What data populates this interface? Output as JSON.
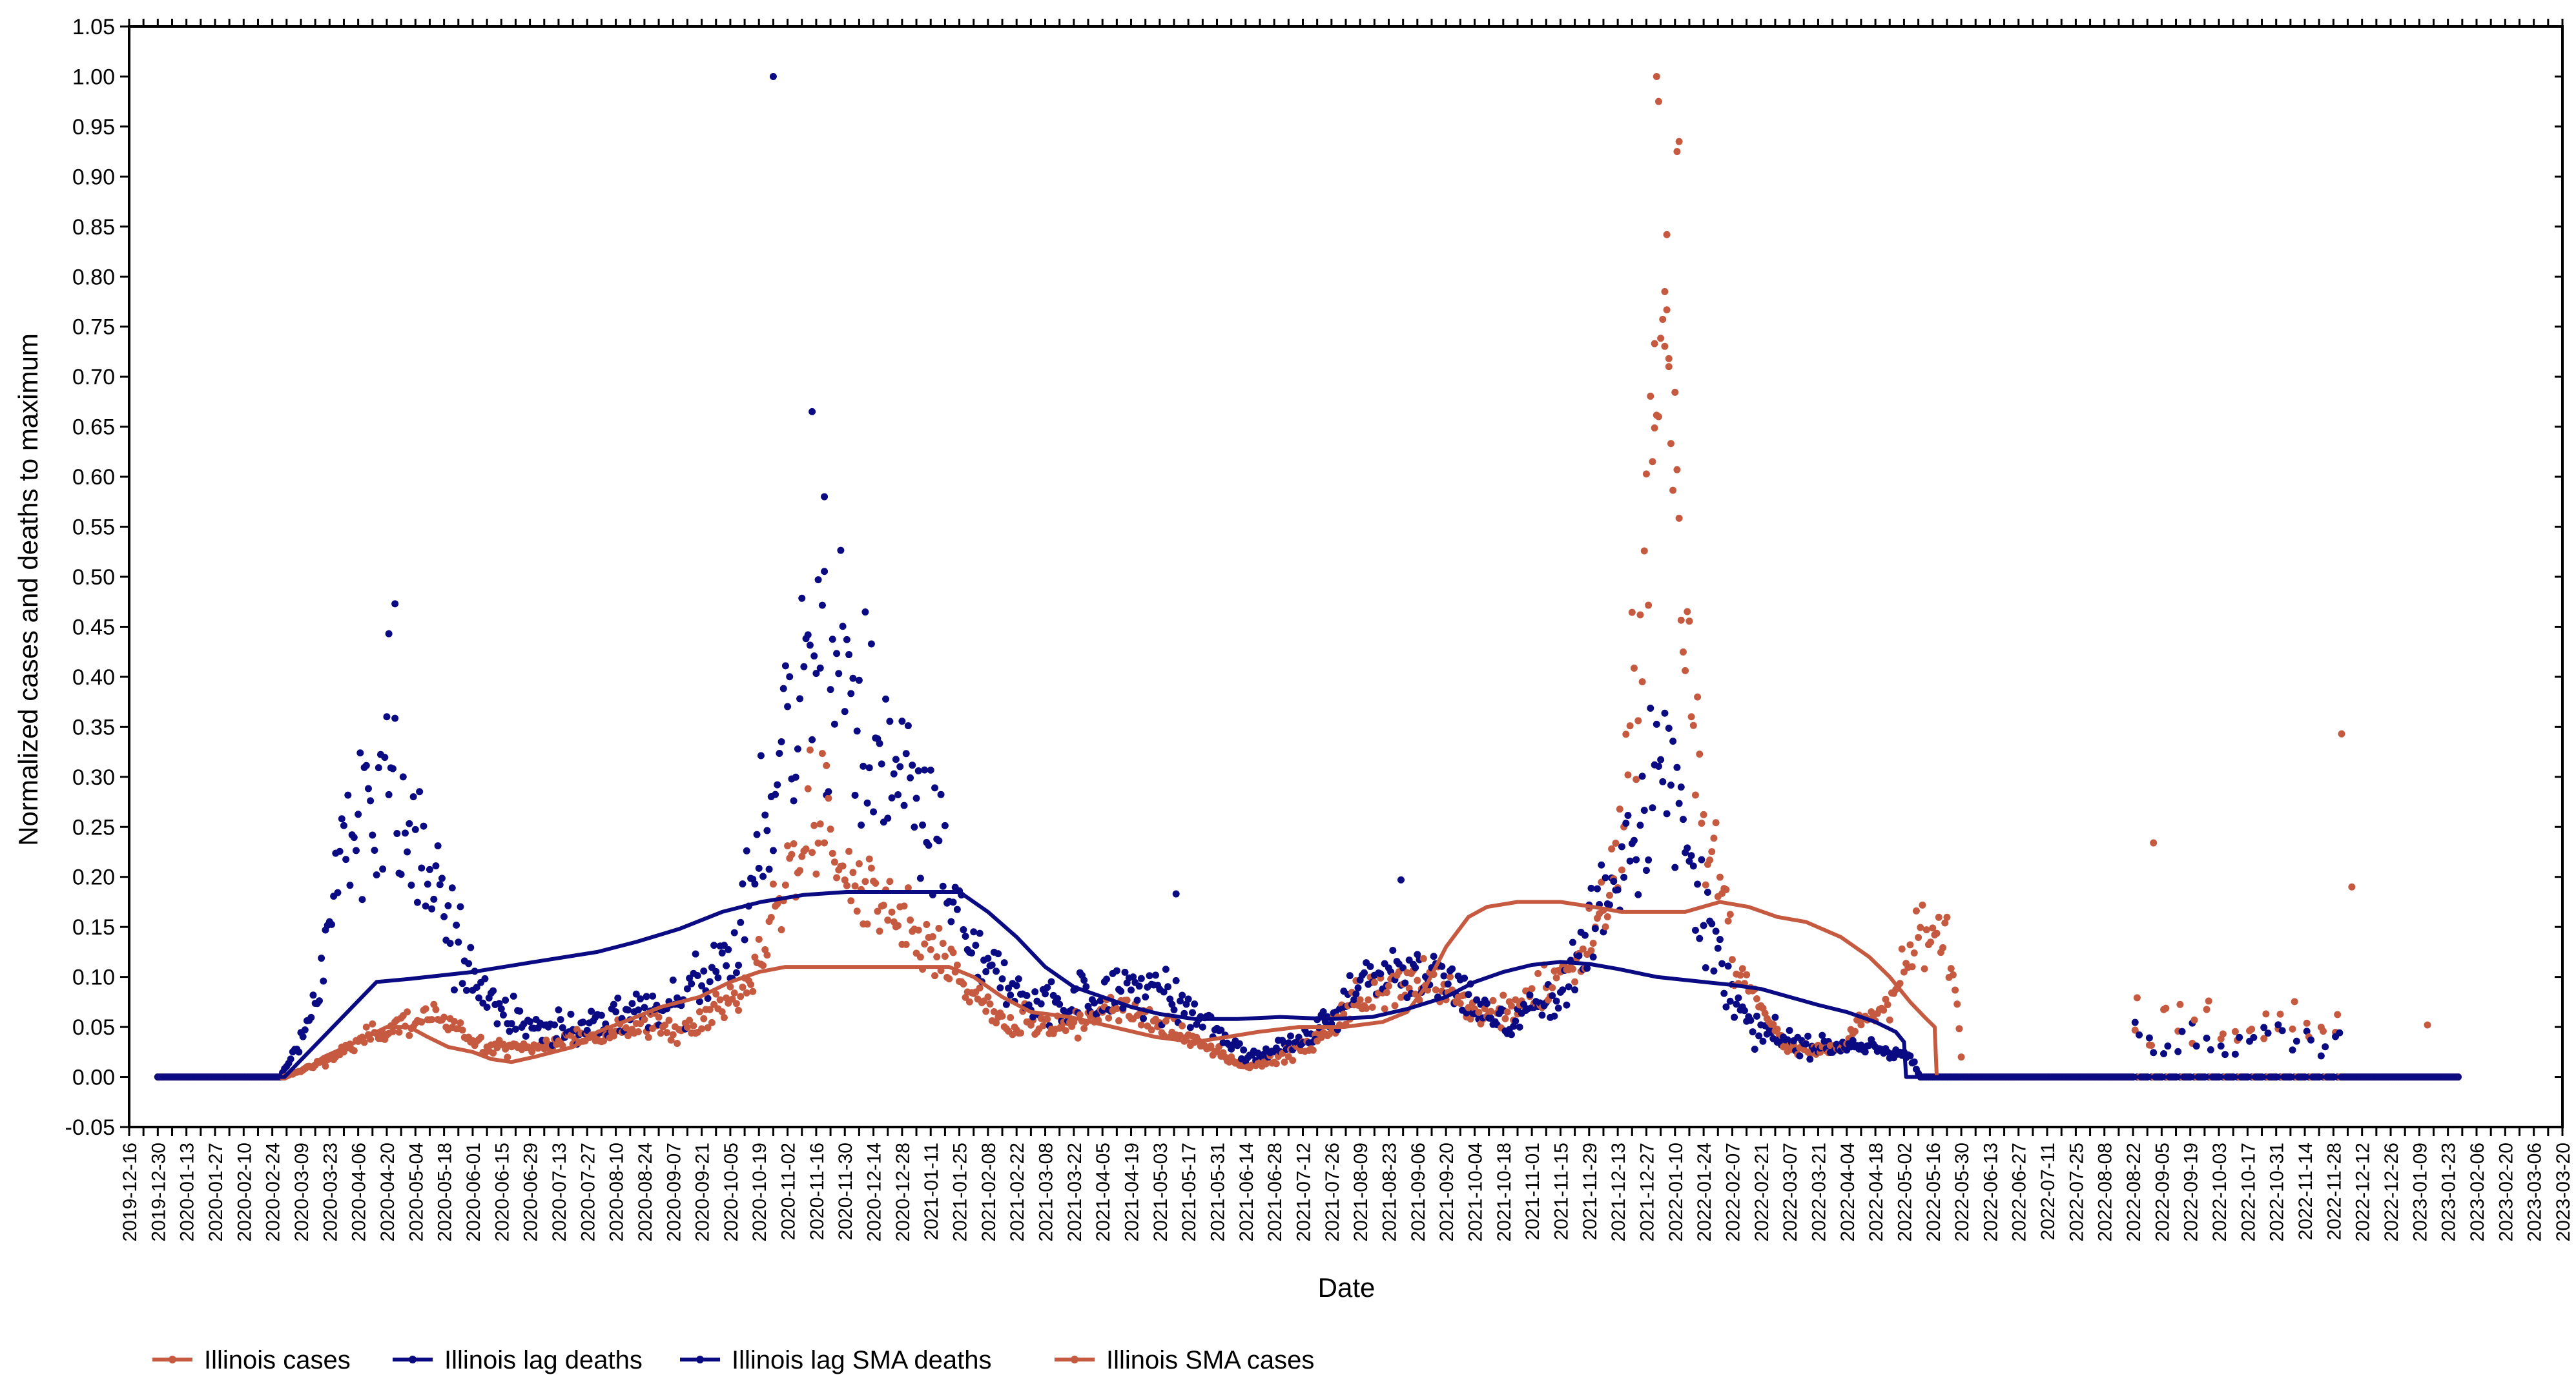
{
  "chart_data": {
    "type": "scatter",
    "title": "",
    "xlabel": "Date",
    "ylabel": "Normalized cases and deaths to maximum",
    "xlim": [
      "2019-12-16",
      "2023-03-20"
    ],
    "ylim": [
      -0.05,
      1.05
    ],
    "grid": false,
    "legend_position": "bottom-left",
    "colors": {
      "cases": "#c65a41",
      "deaths": "#0a0a82"
    },
    "y_ticks": [
      "-0.05",
      "0.00",
      "0.05",
      "0.10",
      "0.15",
      "0.20",
      "0.25",
      "0.30",
      "0.35",
      "0.40",
      "0.45",
      "0.50",
      "0.55",
      "0.60",
      "0.65",
      "0.70",
      "0.75",
      "0.80",
      "0.85",
      "0.90",
      "0.95",
      "1.00",
      "1.05"
    ],
    "x_ticks": [
      "2019-12-16",
      "2019-12-30",
      "2020-01-13",
      "2020-01-27",
      "2020-02-10",
      "2020-02-24",
      "2020-03-09",
      "2020-03-23",
      "2020-04-06",
      "2020-04-20",
      "2020-05-04",
      "2020-05-18",
      "2020-06-01",
      "2020-06-15",
      "2020-06-29",
      "2020-07-13",
      "2020-07-27",
      "2020-08-10",
      "2020-08-24",
      "2020-09-07",
      "2020-09-21",
      "2020-10-05",
      "2020-10-19",
      "2020-11-02",
      "2020-11-16",
      "2020-11-30",
      "2020-12-14",
      "2020-12-28",
      "2021-01-11",
      "2021-01-25",
      "2021-02-08",
      "2021-02-22",
      "2021-03-08",
      "2021-03-22",
      "2021-04-05",
      "2021-04-19",
      "2021-05-03",
      "2021-05-17",
      "2021-05-31",
      "2021-06-14",
      "2021-06-28",
      "2021-07-12",
      "2021-07-26",
      "2021-08-09",
      "2021-08-23",
      "2021-09-06",
      "2021-09-20",
      "2021-10-04",
      "2021-10-18",
      "2021-11-01",
      "2021-11-15",
      "2021-11-29",
      "2021-12-13",
      "2021-12-27",
      "2022-01-10",
      "2022-01-24",
      "2022-02-07",
      "2022-02-21",
      "2022-03-07",
      "2022-03-21",
      "2022-04-04",
      "2022-04-18",
      "2022-05-02",
      "2022-05-16",
      "2022-05-30",
      "2022-06-13",
      "2022-06-27",
      "2022-07-11",
      "2022-07-25",
      "2022-08-08",
      "2022-08-22",
      "2022-09-05",
      "2022-09-19",
      "2022-10-03",
      "2022-10-17",
      "2022-10-31",
      "2022-11-14",
      "2022-11-28",
      "2022-12-12",
      "2022-12-26",
      "2023-01-09",
      "2023-01-23",
      "2023-02-06",
      "2023-02-20",
      "2023-03-06",
      "2023-03-20"
    ],
    "legend": [
      "Illinois cases",
      "Illinois lag deaths",
      "Illinois lag SMA deaths",
      "Illinois SMA cases"
    ],
    "series": [
      {
        "name": "Illinois SMA cases",
        "kind": "line",
        "color_key": "cases",
        "points": [
          [
            "2020-01-01",
            0
          ],
          [
            "2020-03-01",
            0
          ],
          [
            "2020-03-10",
            0.005
          ],
          [
            "2020-03-20",
            0.02
          ],
          [
            "2020-03-31",
            0.03
          ],
          [
            "2020-04-10",
            0.04
          ],
          [
            "2020-04-20",
            0.05
          ],
          [
            "2020-05-01",
            0.05
          ],
          [
            "2020-05-10",
            0.04
          ],
          [
            "2020-05-20",
            0.03
          ],
          [
            "2020-06-01",
            0.025
          ],
          [
            "2020-06-10",
            0.018
          ],
          [
            "2020-06-20",
            0.015
          ],
          [
            "2020-07-01",
            0.02
          ],
          [
            "2020-07-20",
            0.03
          ],
          [
            "2020-08-01",
            0.045
          ],
          [
            "2020-08-20",
            0.06
          ],
          [
            "2020-09-01",
            0.07
          ],
          [
            "2020-09-20",
            0.08
          ],
          [
            "2020-10-05",
            0.095
          ],
          [
            "2020-10-19",
            0.105
          ],
          [
            "2020-11-01",
            0.11
          ],
          [
            "2020-12-01",
            0.11
          ],
          [
            "2021-01-01",
            0.11
          ],
          [
            "2021-01-20",
            0.11
          ],
          [
            "2021-02-01",
            0.1
          ],
          [
            "2021-02-15",
            0.08
          ],
          [
            "2021-03-01",
            0.065
          ],
          [
            "2021-03-20",
            0.06
          ],
          [
            "2021-04-10",
            0.05
          ],
          [
            "2021-05-01",
            0.04
          ],
          [
            "2021-05-20",
            0.035
          ],
          [
            "2021-06-05",
            0.04
          ],
          [
            "2021-06-20",
            0.045
          ],
          [
            "2021-07-10",
            0.05
          ],
          [
            "2021-08-01",
            0.05
          ],
          [
            "2021-08-20",
            0.055
          ],
          [
            "2021-09-01",
            0.065
          ],
          [
            "2021-09-10",
            0.09
          ],
          [
            "2021-09-20",
            0.13
          ],
          [
            "2021-10-01",
            0.16
          ],
          [
            "2021-10-10",
            0.17
          ],
          [
            "2021-10-25",
            0.175
          ],
          [
            "2021-11-15",
            0.175
          ],
          [
            "2021-12-01",
            0.17
          ],
          [
            "2021-12-15",
            0.165
          ],
          [
            "2022-01-01",
            0.165
          ],
          [
            "2022-01-15",
            0.165
          ],
          [
            "2022-02-01",
            0.175
          ],
          [
            "2022-02-15",
            0.17
          ],
          [
            "2022-03-01",
            0.16
          ],
          [
            "2022-03-15",
            0.155
          ],
          [
            "2022-04-01",
            0.14
          ],
          [
            "2022-04-15",
            0.12
          ],
          [
            "2022-04-25",
            0.1
          ],
          [
            "2022-05-05",
            0.075
          ],
          [
            "2022-05-12",
            0.06
          ],
          [
            "2022-05-17",
            0.05
          ],
          [
            "2022-05-18",
            0
          ],
          [
            "2023-01-27",
            0
          ]
        ]
      },
      {
        "name": "Illinois lag SMA deaths",
        "kind": "line",
        "color_key": "deaths",
        "points": [
          [
            "2020-01-01",
            0
          ],
          [
            "2020-03-01",
            0
          ],
          [
            "2020-04-15",
            0.095
          ],
          [
            "2020-05-01",
            0.098
          ],
          [
            "2020-06-01",
            0.105
          ],
          [
            "2020-07-01",
            0.115
          ],
          [
            "2020-08-01",
            0.125
          ],
          [
            "2020-08-20",
            0.135
          ],
          [
            "2020-09-10",
            0.148
          ],
          [
            "2020-10-01",
            0.165
          ],
          [
            "2020-10-20",
            0.175
          ],
          [
            "2020-11-10",
            0.182
          ],
          [
            "2020-12-01",
            0.185
          ],
          [
            "2021-01-01",
            0.185
          ],
          [
            "2021-01-25",
            0.185
          ],
          [
            "2021-02-08",
            0.165
          ],
          [
            "2021-02-22",
            0.14
          ],
          [
            "2021-03-08",
            0.11
          ],
          [
            "2021-03-22",
            0.09
          ],
          [
            "2021-04-05",
            0.08
          ],
          [
            "2021-04-19",
            0.07
          ],
          [
            "2021-05-03",
            0.063
          ],
          [
            "2021-05-20",
            0.058
          ],
          [
            "2021-06-10",
            0.058
          ],
          [
            "2021-07-01",
            0.06
          ],
          [
            "2021-07-26",
            0.058
          ],
          [
            "2021-08-15",
            0.06
          ],
          [
            "2021-09-01",
            0.068
          ],
          [
            "2021-09-20",
            0.08
          ],
          [
            "2021-10-04",
            0.095
          ],
          [
            "2021-10-18",
            0.105
          ],
          [
            "2021-11-01",
            0.112
          ],
          [
            "2021-11-15",
            0.115
          ],
          [
            "2021-11-29",
            0.113
          ],
          [
            "2021-12-13",
            0.108
          ],
          [
            "2022-01-01",
            0.1
          ],
          [
            "2022-01-24",
            0.095
          ],
          [
            "2022-02-07",
            0.092
          ],
          [
            "2022-02-21",
            0.088
          ],
          [
            "2022-03-07",
            0.08
          ],
          [
            "2022-03-21",
            0.072
          ],
          [
            "2022-04-04",
            0.065
          ],
          [
            "2022-04-18",
            0.055
          ],
          [
            "2022-04-28",
            0.045
          ],
          [
            "2022-05-02",
            0.035
          ],
          [
            "2022-05-03",
            0
          ],
          [
            "2023-01-27",
            0
          ]
        ]
      }
    ]
  }
}
